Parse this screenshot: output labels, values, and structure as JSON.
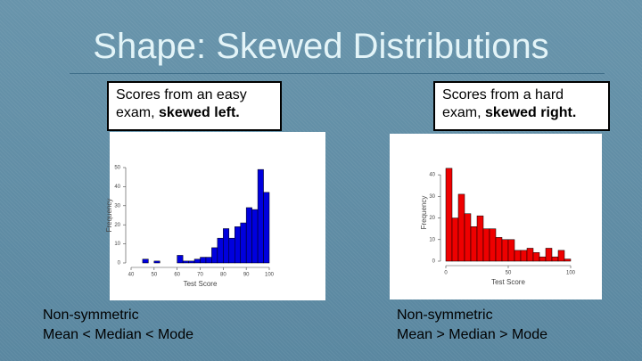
{
  "slide": {
    "title": "Shape: Skewed Distributions",
    "left_caption": {
      "line1": "Scores from an easy",
      "prefix": "exam, ",
      "bold": "skewed left."
    },
    "right_caption": {
      "line1": "Scores from a hard",
      "prefix": "exam, ",
      "bold": "skewed right."
    },
    "left_note": [
      "Non-symmetric",
      "Mean < Median < Mode"
    ],
    "right_note": [
      "Non-symmetric",
      "Mean > Median > Mode"
    ]
  },
  "chart_data": [
    {
      "type": "histogram",
      "xlabel": "Test Score",
      "ylabel": "Frequency",
      "color": "#0000dd",
      "bins": [
        45,
        47.5,
        50,
        52.5,
        55,
        57.5,
        60,
        62.5,
        65,
        67.5,
        70,
        72.5,
        75,
        77.5,
        80,
        82.5,
        85,
        87.5,
        90,
        92.5,
        95,
        97.5,
        100
      ],
      "values": [
        2,
        0,
        1,
        0,
        0,
        0,
        4,
        1,
        1,
        2,
        3,
        3,
        8,
        13,
        18,
        13,
        19,
        21,
        29,
        28,
        49,
        37
      ],
      "xlim": [
        40,
        100
      ],
      "xticks": [
        40,
        50,
        60,
        70,
        80,
        90,
        100
      ],
      "ylim": [
        0,
        50
      ],
      "yticks": [
        0,
        10,
        20,
        30,
        40,
        50
      ]
    },
    {
      "type": "histogram",
      "xlabel": "Test Score",
      "ylabel": "Frequency",
      "color": "#ee0000",
      "bins": [
        0,
        5,
        10,
        15,
        20,
        25,
        30,
        35,
        40,
        45,
        50,
        55,
        60,
        65,
        70,
        75,
        80,
        85,
        90,
        95,
        100
      ],
      "values": [
        43,
        20,
        31,
        22,
        16,
        21,
        15,
        15,
        11,
        10,
        10,
        5,
        5,
        6,
        4,
        2,
        6,
        2,
        5,
        1
      ],
      "xlim": [
        0,
        100
      ],
      "xticks": [
        0,
        50,
        100
      ],
      "ylim": [
        0,
        45
      ],
      "yticks": [
        0,
        10,
        20,
        30,
        40
      ]
    }
  ]
}
